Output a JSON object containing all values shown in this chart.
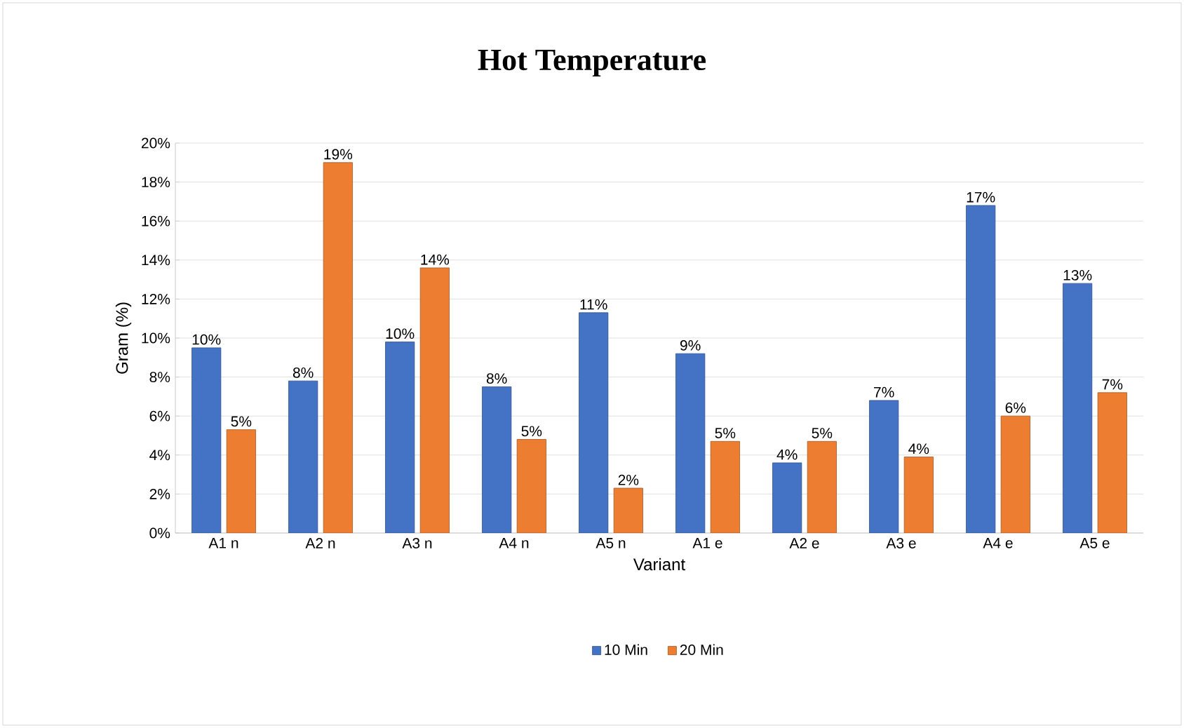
{
  "chart_data": {
    "type": "bar",
    "title": "Hot Temperature",
    "xlabel": "Variant",
    "ylabel": "Gram (%)",
    "categories": [
      "A1 n",
      "A2 n",
      "A3 n",
      "A4 n",
      "A5 n",
      "A1 e",
      "A2 e",
      "A3 e",
      "A4 e",
      "A5 e"
    ],
    "series": [
      {
        "name": "10 Min",
        "color": "#4472c4",
        "values": [
          9.5,
          7.8,
          9.8,
          7.5,
          11.3,
          9.2,
          3.6,
          6.8,
          16.8,
          12.8
        ],
        "value_labels": [
          "10%",
          "8%",
          "10%",
          "8%",
          "11%",
          "9%",
          "4%",
          "7%",
          "17%",
          "13%"
        ]
      },
      {
        "name": "20 Min",
        "color": "#ed7d31",
        "values": [
          5.3,
          19,
          13.6,
          4.8,
          2.3,
          4.7,
          4.7,
          3.9,
          6.0,
          7.2
        ],
        "value_labels": [
          "5%",
          "19%",
          "14%",
          "5%",
          "2%",
          "5%",
          "5%",
          "4%",
          "6%",
          "7%"
        ]
      }
    ],
    "ylim": [
      0,
      20
    ],
    "yticks": [
      {
        "value": 0,
        "label": "0%"
      },
      {
        "value": 2,
        "label": "2%"
      },
      {
        "value": 4,
        "label": "4%"
      },
      {
        "value": 6,
        "label": "6%"
      },
      {
        "value": 8,
        "label": "8%"
      },
      {
        "value": 10,
        "label": "10%"
      },
      {
        "value": 12,
        "label": "12%"
      },
      {
        "value": 14,
        "label": "14%"
      },
      {
        "value": 16,
        "label": "16%"
      },
      {
        "value": 18,
        "label": "18%"
      },
      {
        "value": 20,
        "label": "20%"
      }
    ],
    "grid": "y",
    "legend": "bottom"
  }
}
